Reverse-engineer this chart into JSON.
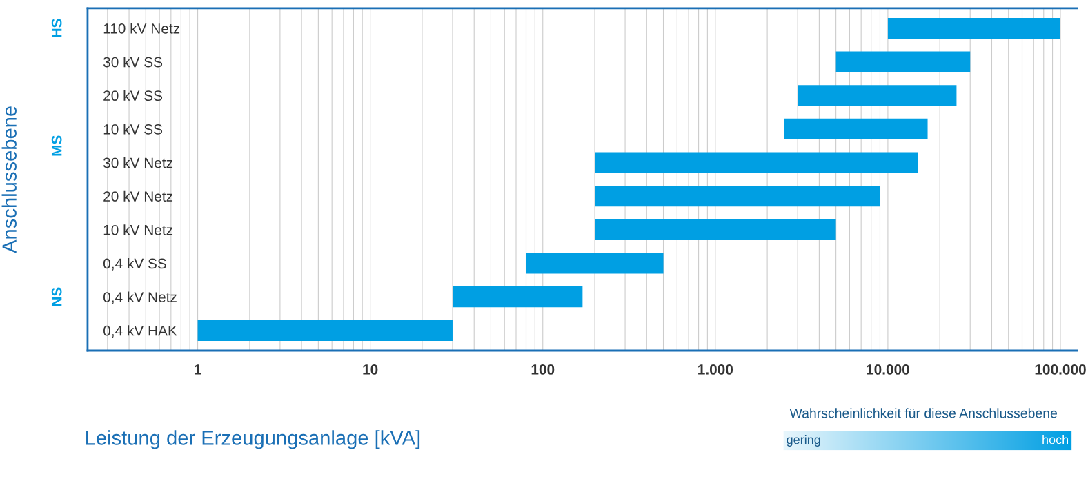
{
  "chart_data": {
    "type": "bar",
    "orientation": "horizontal",
    "log": "x",
    "categories": [
      "110 kV Netz",
      "30 kV SS",
      "20 kV SS",
      "10 kV SS",
      "30 kV Netz",
      "20 kV Netz",
      "10 kV Netz",
      "0,4 kV SS",
      "0,4 kV Netz",
      "0,4 kV HAK"
    ],
    "base": [
      10000,
      5000,
      3000,
      2500,
      200,
      200,
      200,
      80,
      30,
      1
    ],
    "values": [
      90000,
      25000,
      22000,
      14500,
      14800,
      8800,
      4800,
      420,
      140,
      29
    ],
    "color": "#009fe3",
    "xlim": [
      0.23,
      125000
    ],
    "xticks": [
      1,
      10,
      100,
      {
        "value": 1000,
        "label": "1.000"
      },
      {
        "value": 10000,
        "label": "10.000"
      },
      {
        "value": 100000,
        "label": "100.000"
      }
    ],
    "xlabel": "Leistung der Erzeugungsanlage [kVA]",
    "ylabel": "Anschlussebene",
    "grid": "x",
    "annotations": [
      "HS",
      "MS",
      "NS",
      "Wahrscheinlichkeit für diese Anschlussebene",
      "gering",
      "hoch"
    ]
  }
}
